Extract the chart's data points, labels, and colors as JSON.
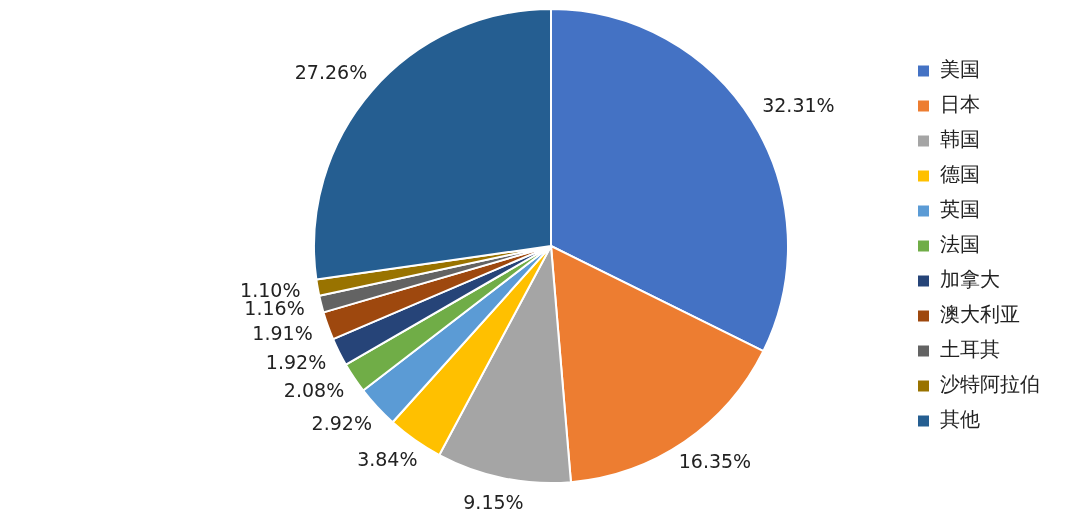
{
  "chart_data": {
    "type": "pie",
    "categories": [
      "美国",
      "日本",
      "韩国",
      "德国",
      "英国",
      "法国",
      "加拿大",
      "澳大利亚",
      "土耳其",
      "沙特阿拉伯",
      "其他"
    ],
    "values": [
      32.31,
      16.35,
      9.15,
      3.84,
      2.92,
      2.08,
      1.92,
      1.91,
      1.16,
      1.1,
      27.26
    ],
    "value_labels": [
      "32.31%",
      "16.35%",
      "9.15%",
      "3.84%",
      "2.92%",
      "2.08%",
      "1.92%",
      "1.91%",
      "1.16%",
      "1.10%",
      "27.26%"
    ],
    "colors": [
      "#4472c4",
      "#ed7d31",
      "#a5a5a5",
      "#ffc000",
      "#5b9bd5",
      "#70ad47",
      "#264478",
      "#9e480e",
      "#636363",
      "#997300",
      "#255e91"
    ],
    "legend": "right"
  }
}
